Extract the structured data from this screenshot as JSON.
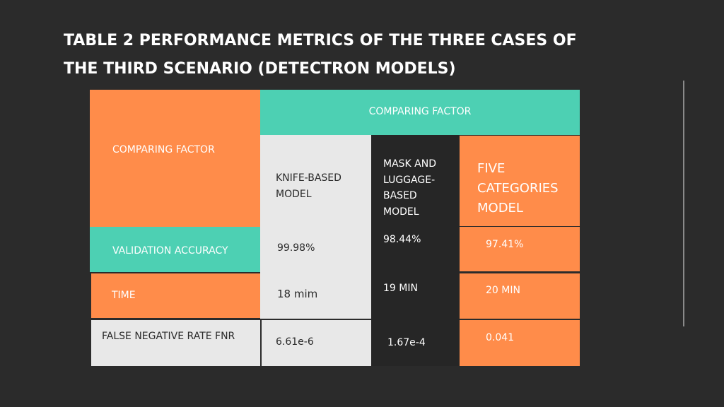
{
  "slide": {
    "title_line1": "TABLE 2 PERFORMANCE METRICS OF THE THREE CASES OF",
    "title_line2": "THE THIRD SCENARIO (DETECTRON MODELS)"
  },
  "table": {
    "row_header_title": "COMPARING FACTOR",
    "column_group_title": "COMPARING FACTOR",
    "columns": [
      {
        "line1": "KNIFE-BASED",
        "line2": "MODEL"
      },
      {
        "line1": "MASK AND",
        "line2": "LUGGAGE-",
        "line3": "BASED",
        "line4": "MODEL"
      },
      {
        "line1": "FIVE",
        "line2": "CATEGORIES",
        "line3": "MODEL"
      }
    ],
    "rows": [
      {
        "label": "VALIDATION ACCURACY",
        "values": [
          "99.98%",
          "98.44%",
          "97.41%"
        ]
      },
      {
        "label": "TIME",
        "values": [
          "18 mim",
          "19 MIN",
          "20 MIN"
        ]
      },
      {
        "label": "FALSE NEGATIVE RATE FNR",
        "values": [
          "6.61e-6",
          "1.67e-4",
          "0.041"
        ]
      }
    ]
  },
  "colors": {
    "background": "#2b2b2b",
    "orange": "#ff8c4a",
    "teal": "#4dd0b3",
    "light_gray": "#e8e8e8",
    "dark": "#262626"
  }
}
